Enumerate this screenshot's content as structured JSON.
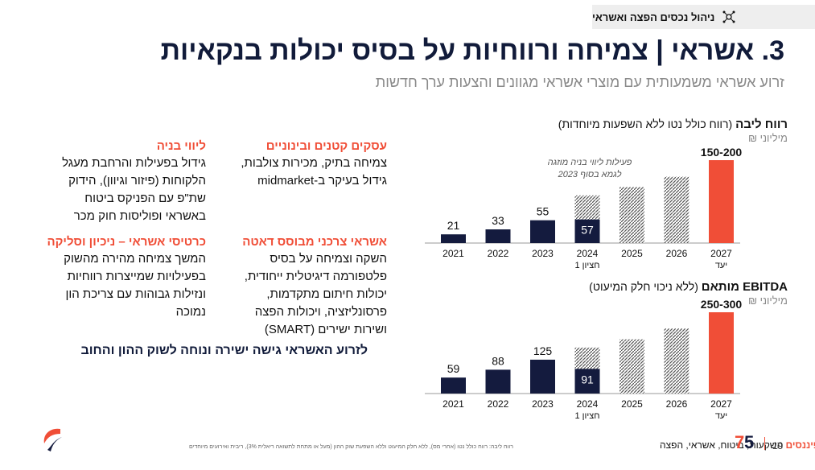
{
  "topbar": {
    "text": "ניהול נכסים הפצה ואשראי",
    "icon": "network-icon"
  },
  "title": "3. אשראי | צמיחה ורווחיות על בסיס יכולות בנקאיות",
  "subtitle": "זרוע אשראי משמעותית עם מוצרי אשראי מגוונים והצעות ערך חדשות",
  "blocks": [
    {
      "heading": "עסקים קטנים ובינוניים",
      "body": [
        "צמיחה בתיק, מכירות צולבות,",
        "גידול בעיקר ב-midmarket"
      ]
    },
    {
      "heading": "ליווי בניה",
      "body": [
        "גידול בפעילות והרחבת מעגל",
        "הלקוחות (פיזור וגיוון), הידוק",
        "שת\"פ עם הפניקס ביטוח",
        "באשראי ופוליסות חוק מכר"
      ]
    },
    {
      "heading": "אשראי צרכני מבוסס דאטה",
      "body": [
        "השקה וצמיחה על בסיס",
        "פלטפורמה דיגיטלית ייחודית,",
        "יכולות חיתום מתקדמות,",
        "פרסונליזציה, ויכולות הפצה",
        "ושירות ישירים (SMART)"
      ]
    },
    {
      "heading": "כרטיסי אשראי – ניכיון וסליקה",
      "body": [
        "המשך צמיחה מהירה מהשוק",
        "בפעילויות שמייצרות רווחיות",
        "ונזילות גבוהות עם צריכת הון",
        "נמוכה"
      ]
    }
  ],
  "strap": "לזרוע האשראי גישה ישירה ונוחה לשוק ההון והחוב",
  "chart_data": [
    {
      "type": "bar",
      "title": "רווח ליבה",
      "title_note": "(רווח כולל נטו ללא השפעות מיוחדות)",
      "unit": "מיליוני ₪",
      "annotation": [
        "פעילות ליווי בניה מוזגה",
        "לגמא בסוף 2023"
      ],
      "categories": [
        "2021",
        "2022",
        "2023",
        "2024",
        "2025",
        "2026",
        "2027"
      ],
      "category_sub": [
        "",
        "",
        "",
        "חציון 1",
        "",
        "",
        "יעד"
      ],
      "values": [
        21,
        33,
        55,
        57,
        null,
        null,
        null
      ],
      "value_labels": [
        "21",
        "33",
        "55",
        "57",
        "",
        "",
        "150-200"
      ],
      "hatched_levels": [
        null,
        null,
        null,
        115,
        135,
        160,
        null
      ],
      "target": 200,
      "ylim": [
        0,
        200
      ],
      "colors": {
        "actual": "#141b3e",
        "target": "#f04e37",
        "hatch": "#555555"
      }
    },
    {
      "type": "bar",
      "title": "EBITDA מותאם",
      "title_note": "(ללא ניכוי חלק המיעוט)",
      "unit": "מיליוני ₪",
      "categories": [
        "2021",
        "2022",
        "2023",
        "2024",
        "2025",
        "2026",
        "2027"
      ],
      "category_sub": [
        "",
        "",
        "",
        "חציון 1",
        "",
        "",
        "יעד"
      ],
      "values": [
        59,
        88,
        125,
        91,
        null,
        null,
        null
      ],
      "value_labels": [
        "59",
        "88",
        "125",
        "91",
        "",
        "",
        "250-300"
      ],
      "hatched_levels": [
        null,
        null,
        null,
        170,
        200,
        240,
        null
      ],
      "target": 300,
      "ylim": [
        0,
        300
      ],
      "colors": {
        "actual": "#141b3e",
        "target": "#f04e37",
        "hatch": "#555555"
      }
    }
  ],
  "footer": {
    "page": "19",
    "brand_red": "הפניקס פיננסים",
    "brand_rest": "השקעות, ביטוח, אשראי, הפצה",
    "note": "רווח ליבה: רווח כולל נטו (אחרי מס), ללא חלק המיעוט וללא השפעת שוק ההון (מעל או מתחת לתשואה ריאלית 3%), ריבית ואירועים מיוחדים"
  }
}
